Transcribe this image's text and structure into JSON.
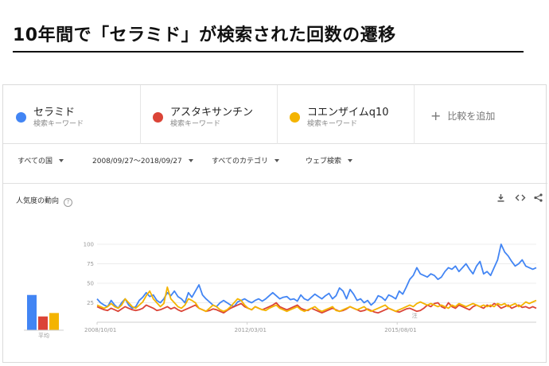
{
  "headline": "10年間で「セラミド」が検索された回数の遷移",
  "terms": [
    {
      "name": "セラミド",
      "sub": "検索キーワード",
      "color": "#4285f4"
    },
    {
      "name": "アスタキサンチン",
      "sub": "検索キーワード",
      "color": "#db4437"
    },
    {
      "name": "コエンザイムq10",
      "sub": "検索キーワード",
      "color": "#f4b400"
    }
  ],
  "add_term": "比較を追加",
  "filters": {
    "region": "すべての国",
    "date_range": "2008/09/27～2018/09/27",
    "category": "すべてのカテゴリ",
    "search_type": "ウェブ検索"
  },
  "card_title": "人気度の動向",
  "tools": {
    "download": "download-icon",
    "embed": "embed-icon",
    "share": "share-icon"
  },
  "chart_data": {
    "type": "line",
    "ylim": [
      0,
      100
    ],
    "yticks": [
      25,
      50,
      75,
      100
    ],
    "xticks": [
      "2008/10/01",
      "2012/03/01",
      "2015/08/01"
    ],
    "average_label": "平均",
    "note_marker": "注",
    "average": [
      {
        "name": "セラミド",
        "value": 41,
        "color": "#4285f4"
      },
      {
        "name": "アスタキサンチン",
        "value": 16,
        "color": "#db4437"
      },
      {
        "name": "コエンザイムq10",
        "value": 20,
        "color": "#f4b400"
      }
    ],
    "series": [
      {
        "name": "セラミド",
        "color": "#4285f4",
        "values": [
          30,
          25,
          22,
          20,
          28,
          22,
          18,
          25,
          30,
          22,
          18,
          20,
          28,
          32,
          38,
          33,
          35,
          28,
          25,
          30,
          38,
          34,
          40,
          33,
          30,
          25,
          38,
          32,
          40,
          48,
          35,
          30,
          26,
          22,
          20,
          25,
          28,
          25,
          22,
          20,
          26,
          28,
          30,
          27,
          25,
          28,
          30,
          27,
          30,
          34,
          38,
          34,
          30,
          32,
          33,
          29,
          30,
          27,
          35,
          30,
          28,
          32,
          36,
          33,
          30,
          34,
          37,
          30,
          34,
          44,
          40,
          30,
          42,
          36,
          28,
          30,
          25,
          28,
          22,
          26,
          34,
          32,
          28,
          35,
          33,
          30,
          40,
          36,
          45,
          55,
          60,
          70,
          62,
          60,
          58,
          62,
          60,
          55,
          58,
          65,
          70,
          68,
          72,
          65,
          70,
          75,
          68,
          62,
          72,
          78,
          62,
          65,
          60,
          70,
          80,
          100,
          90,
          85,
          78,
          72,
          75,
          80,
          72,
          70,
          68,
          70
        ]
      },
      {
        "name": "アスタキサンチン",
        "color": "#db4437",
        "values": [
          20,
          18,
          16,
          15,
          18,
          16,
          14,
          17,
          20,
          18,
          16,
          15,
          16,
          18,
          22,
          20,
          18,
          15,
          16,
          18,
          20,
          17,
          19,
          16,
          14,
          16,
          18,
          20,
          22,
          18,
          16,
          14,
          15,
          17,
          16,
          14,
          12,
          15,
          18,
          20,
          22,
          24,
          20,
          18,
          16,
          20,
          18,
          16,
          18,
          20,
          22,
          25,
          20,
          18,
          16,
          18,
          20,
          22,
          18,
          16,
          15,
          18,
          16,
          14,
          12,
          14,
          16,
          18,
          16,
          14,
          15,
          17,
          20,
          18,
          16,
          14,
          15,
          17,
          15,
          13,
          12,
          14,
          16,
          18,
          16,
          14,
          13,
          15,
          17,
          18,
          16,
          14,
          15,
          18,
          22,
          20,
          24,
          25,
          20,
          18,
          25,
          20,
          18,
          22,
          20,
          18,
          16,
          20,
          22,
          20,
          18,
          22,
          20,
          24,
          22,
          18,
          20,
          22,
          18,
          20,
          22,
          19,
          20,
          18,
          20,
          18
        ]
      },
      {
        "name": "コエンザイムq10",
        "color": "#f4b400",
        "values": [
          22,
          20,
          18,
          20,
          24,
          20,
          18,
          22,
          30,
          25,
          20,
          18,
          22,
          26,
          34,
          40,
          30,
          25,
          20,
          24,
          45,
          30,
          25,
          20,
          18,
          22,
          30,
          28,
          25,
          18,
          16,
          14,
          18,
          22,
          20,
          16,
          14,
          16,
          20,
          25,
          30,
          28,
          22,
          18,
          16,
          20,
          18,
          16,
          15,
          18,
          20,
          22,
          18,
          16,
          14,
          16,
          18,
          20,
          16,
          14,
          16,
          18,
          20,
          16,
          14,
          16,
          18,
          20,
          15,
          14,
          16,
          18,
          20,
          18,
          16,
          18,
          20,
          16,
          14,
          16,
          18,
          20,
          22,
          18,
          16,
          14,
          16,
          18,
          20,
          22,
          20,
          24,
          26,
          24,
          22,
          24,
          22,
          20,
          22,
          20,
          18,
          22,
          20,
          24,
          22,
          20,
          22,
          24,
          22,
          20,
          22,
          20,
          22,
          20,
          24,
          22,
          24,
          20,
          22,
          24,
          20,
          22,
          26,
          24,
          26,
          28
        ]
      }
    ]
  }
}
